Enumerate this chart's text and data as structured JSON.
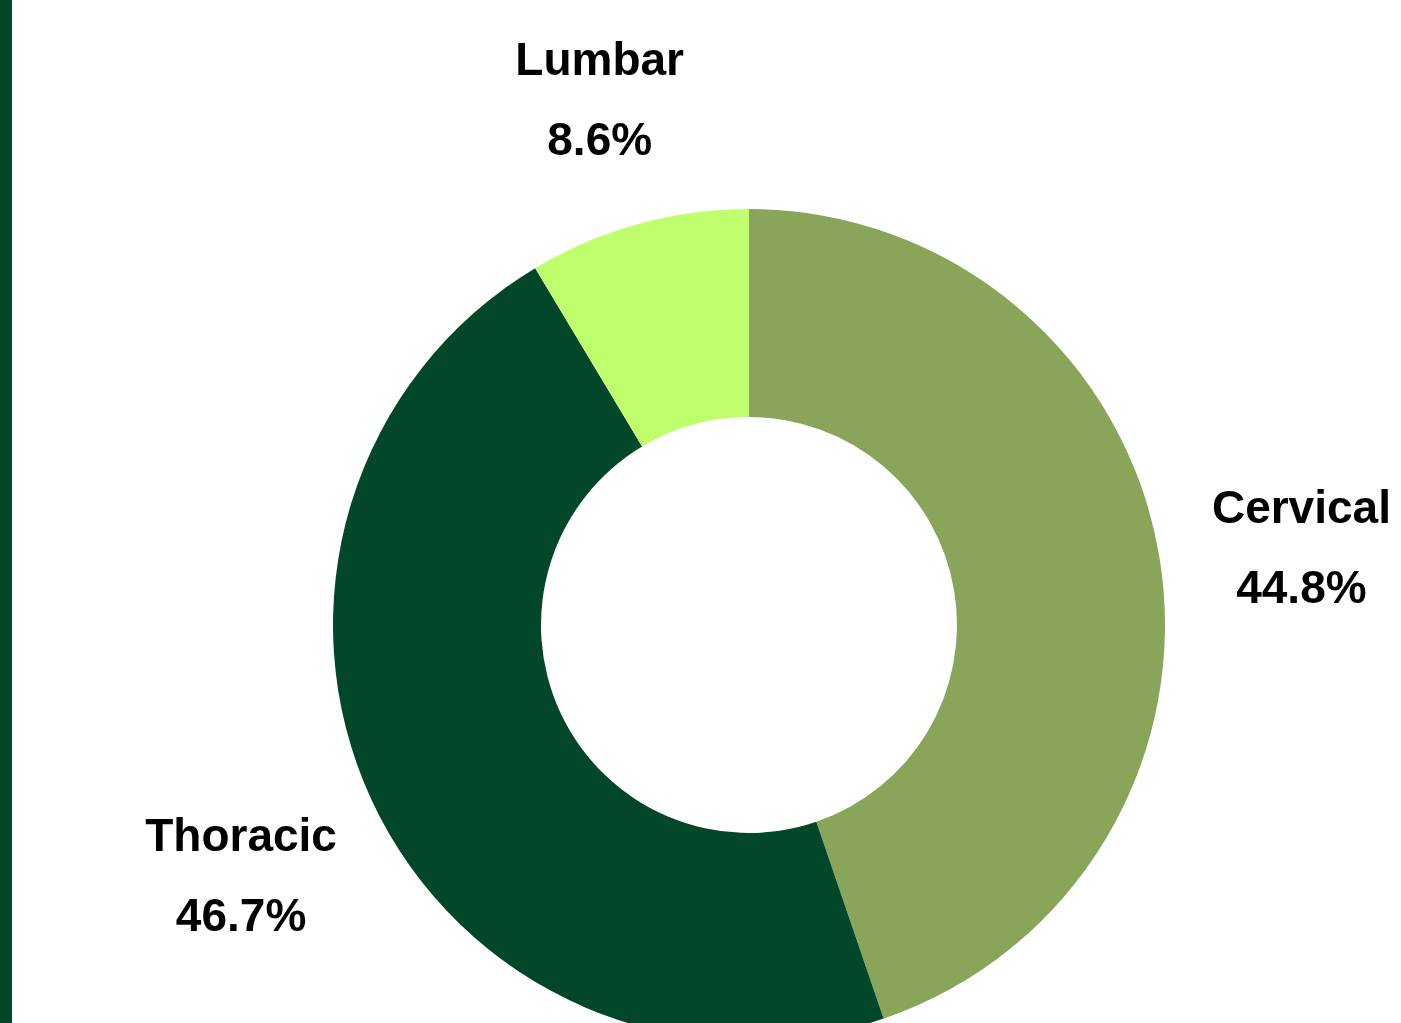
{
  "chart_data": {
    "type": "donut",
    "categories": [
      "Cervical",
      "Thoracic",
      "Lumbar"
    ],
    "values": [
      44.8,
      46.7,
      8.6
    ],
    "colors": [
      "#88a55a",
      "#03472a",
      "#bfff6e"
    ],
    "value_labels": [
      "44.8%",
      "46.7%",
      "8.6%"
    ],
    "legend": false
  }
}
